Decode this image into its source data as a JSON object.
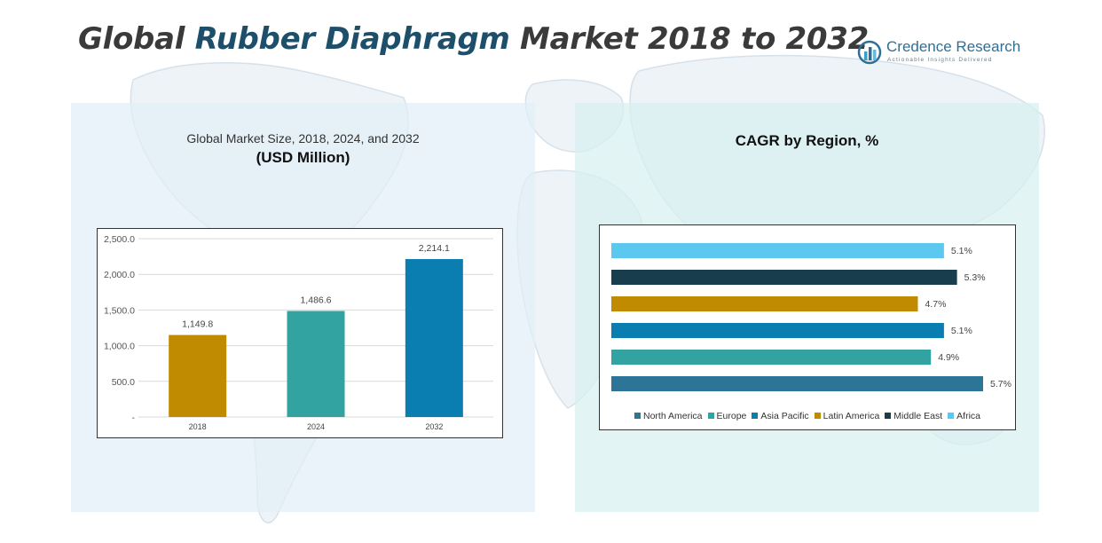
{
  "header": {
    "title_part1": "Global ",
    "title_part2": "Rubber Diaphragm",
    "title_part3": " Market 2018 to 2032"
  },
  "logo": {
    "name": "Credence Research",
    "tagline": "Actionable Insights Delivered"
  },
  "colors": {
    "title_text": "#3a3a3a",
    "title_accent": "#1d4f6b",
    "left_panel_bg": "#e2eef7",
    "right_panel_bg": "#d8f0f0"
  },
  "chart_data": [
    {
      "type": "bar",
      "title": "Global Market Size, 2018, 2024, and 2032",
      "subtitle": "(USD Million)",
      "categories": [
        "2018",
        "2024",
        "2032"
      ],
      "values": [
        1149.8,
        1486.6,
        2214.1
      ],
      "value_labels": [
        "1,149.8",
        "1,486.6",
        "2,214.1"
      ],
      "colors": [
        "#c08b00",
        "#33a3a1",
        "#0a7eb0"
      ],
      "ylim": [
        0,
        2500
      ],
      "yticks": [
        0,
        500,
        1000,
        1500,
        2000,
        2500
      ],
      "ytick_labels": [
        "-",
        "500.0",
        "1,000.0",
        "1,500.0",
        "2,000.0",
        "2,500.0"
      ],
      "grid": true
    },
    {
      "type": "bar",
      "orientation": "horizontal",
      "title": "CAGR by Region, %",
      "categories": [
        "North America",
        "Europe",
        "Asia Pacific",
        "Latin America",
        "Middle East",
        "Africa"
      ],
      "values": [
        5.7,
        4.9,
        5.1,
        4.7,
        5.3,
        5.1
      ],
      "value_labels": [
        "5.7%",
        "4.9%",
        "5.1%",
        "4.7%",
        "5.3%",
        "5.1%"
      ],
      "colors": [
        "#2d7596",
        "#33a3a1",
        "#0a7eb0",
        "#c08b00",
        "#183d4c",
        "#5cc8ef"
      ],
      "xlim": [
        0,
        5.7
      ],
      "legend": "bottom",
      "grid": false
    }
  ]
}
